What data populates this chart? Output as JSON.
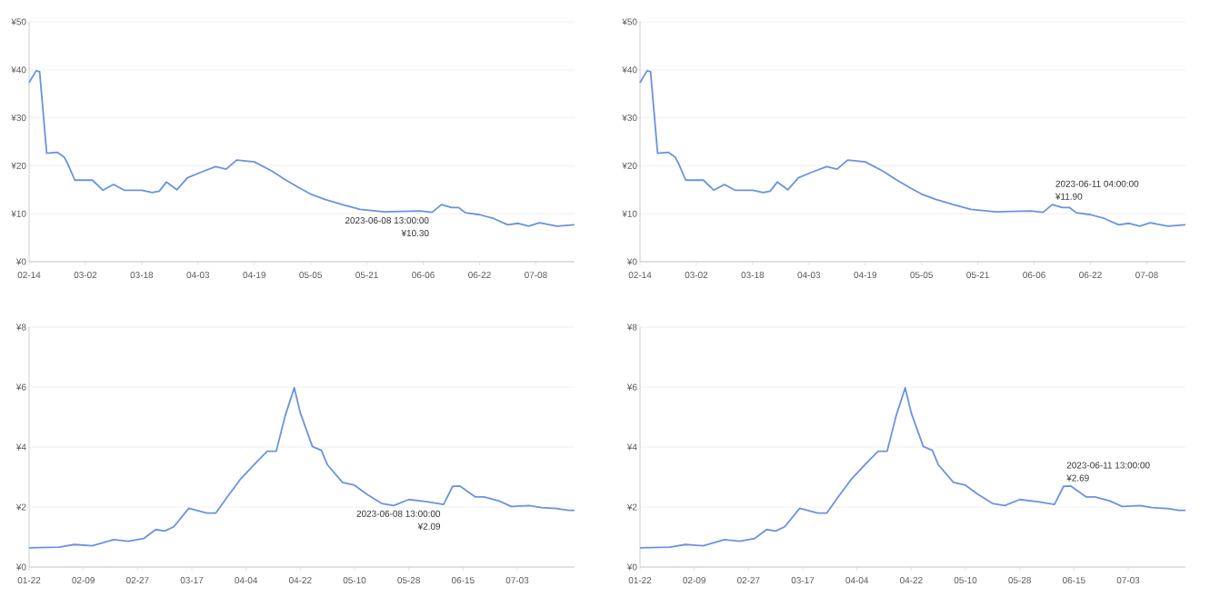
{
  "chart_data": [
    {
      "type": "line",
      "grid": "y",
      "xlim": [
        "2023-02-14",
        "2023-07-19"
      ],
      "xticks": [
        {
          "value": "2023-02-14",
          "label": "02-14"
        },
        {
          "value": "2023-03-02",
          "label": "03-02"
        },
        {
          "value": "2023-03-18",
          "label": "03-18"
        },
        {
          "value": "2023-04-03",
          "label": "04-03"
        },
        {
          "value": "2023-04-19",
          "label": "04-19"
        },
        {
          "value": "2023-05-05",
          "label": "05-05"
        },
        {
          "value": "2023-05-21",
          "label": "05-21"
        },
        {
          "value": "2023-06-06",
          "label": "06-06"
        },
        {
          "value": "2023-06-22",
          "label": "06-22"
        },
        {
          "value": "2023-07-08",
          "label": "07-08"
        }
      ],
      "ylim": [
        0,
        50
      ],
      "yticks": [
        {
          "value": 0,
          "label": "¥0"
        },
        {
          "value": 10,
          "label": "¥10"
        },
        {
          "value": 20,
          "label": "¥20"
        },
        {
          "value": 30,
          "label": "¥30"
        },
        {
          "value": 40,
          "label": "¥40"
        },
        {
          "value": 50,
          "label": "¥50"
        }
      ],
      "x": [
        "2023-02-14",
        "2023-02-16",
        "2023-02-17",
        "2023-02-19",
        "2023-02-22",
        "2023-02-24",
        "2023-02-25",
        "2023-02-27",
        "2023-03-04",
        "2023-03-07",
        "2023-03-10",
        "2023-03-13",
        "2023-03-18",
        "2023-03-21",
        "2023-03-23",
        "2023-03-25",
        "2023-03-28",
        "2023-03-31",
        "2023-04-04",
        "2023-04-08",
        "2023-04-11",
        "2023-04-14",
        "2023-04-19",
        "2023-04-24",
        "2023-04-28",
        "2023-05-02",
        "2023-05-05",
        "2023-05-09",
        "2023-05-14",
        "2023-05-19",
        "2023-05-26",
        "2023-06-05",
        "2023-06-08T13:00",
        "2023-06-11T04:00",
        "2023-06-14",
        "2023-06-16",
        "2023-06-18",
        "2023-06-22",
        "2023-06-26",
        "2023-06-30",
        "2023-07-03",
        "2023-07-06",
        "2023-07-09",
        "2023-07-14",
        "2023-07-19"
      ],
      "series": [
        {
          "color": "#6a93e0",
          "values": [
            37.3,
            39.8,
            39.6,
            22.6,
            22.8,
            21.8,
            20.4,
            17.0,
            17.0,
            14.9,
            16.1,
            14.9,
            14.9,
            14.4,
            14.7,
            16.6,
            15.0,
            17.5,
            18.7,
            19.8,
            19.3,
            21.2,
            20.8,
            18.9,
            17.0,
            15.3,
            14.1,
            13.0,
            11.9,
            10.9,
            10.4,
            10.6,
            10.3,
            11.9,
            11.3,
            11.3,
            10.2,
            9.8,
            9.0,
            7.7,
            8.0,
            7.4,
            8.1,
            7.4,
            7.7
          ]
        }
      ],
      "annotations": [
        {
          "text": "2023-06-08 13:00:00",
          "x": "2023-06-08T13:00",
          "y": 10.3
        },
        {
          "text": "¥10.30",
          "x": "2023-06-08T13:00",
          "y": 10.3
        }
      ]
    },
    {
      "type": "line",
      "grid": "y",
      "xlim": [
        "2023-02-14",
        "2023-07-19"
      ],
      "xticks": [
        {
          "value": "2023-02-14",
          "label": "02-14"
        },
        {
          "value": "2023-03-02",
          "label": "03-02"
        },
        {
          "value": "2023-03-18",
          "label": "03-18"
        },
        {
          "value": "2023-04-03",
          "label": "04-03"
        },
        {
          "value": "2023-04-19",
          "label": "04-19"
        },
        {
          "value": "2023-05-05",
          "label": "05-05"
        },
        {
          "value": "2023-05-21",
          "label": "05-21"
        },
        {
          "value": "2023-06-06",
          "label": "06-06"
        },
        {
          "value": "2023-06-22",
          "label": "06-22"
        },
        {
          "value": "2023-07-08",
          "label": "07-08"
        }
      ],
      "ylim": [
        0,
        50
      ],
      "yticks": [
        {
          "value": 0,
          "label": "¥0"
        },
        {
          "value": 10,
          "label": "¥10"
        },
        {
          "value": 20,
          "label": "¥20"
        },
        {
          "value": 30,
          "label": "¥30"
        },
        {
          "value": 40,
          "label": "¥40"
        },
        {
          "value": 50,
          "label": "¥50"
        }
      ],
      "x": [
        "2023-02-14",
        "2023-02-16",
        "2023-02-17",
        "2023-02-19",
        "2023-02-22",
        "2023-02-24",
        "2023-02-25",
        "2023-02-27",
        "2023-03-04",
        "2023-03-07",
        "2023-03-10",
        "2023-03-13",
        "2023-03-18",
        "2023-03-21",
        "2023-03-23",
        "2023-03-25",
        "2023-03-28",
        "2023-03-31",
        "2023-04-04",
        "2023-04-08",
        "2023-04-11",
        "2023-04-14",
        "2023-04-19",
        "2023-04-24",
        "2023-04-28",
        "2023-05-02",
        "2023-05-05",
        "2023-05-09",
        "2023-05-14",
        "2023-05-19",
        "2023-05-26",
        "2023-06-05",
        "2023-06-08T13:00",
        "2023-06-11T04:00",
        "2023-06-14",
        "2023-06-16",
        "2023-06-18",
        "2023-06-22",
        "2023-06-26",
        "2023-06-30",
        "2023-07-03",
        "2023-07-06",
        "2023-07-09",
        "2023-07-14",
        "2023-07-19"
      ],
      "series": [
        {
          "color": "#6a93e0",
          "values": [
            37.3,
            39.8,
            39.6,
            22.6,
            22.8,
            21.8,
            20.4,
            17.0,
            17.0,
            14.9,
            16.1,
            14.9,
            14.9,
            14.4,
            14.7,
            16.6,
            15.0,
            17.5,
            18.7,
            19.8,
            19.3,
            21.2,
            20.8,
            18.9,
            17.0,
            15.3,
            14.1,
            13.0,
            11.9,
            10.9,
            10.4,
            10.6,
            10.3,
            11.9,
            11.3,
            11.3,
            10.2,
            9.8,
            9.0,
            7.7,
            8.0,
            7.4,
            8.1,
            7.4,
            7.7
          ]
        }
      ],
      "annotations": [
        {
          "text": "2023-06-11 04:00:00",
          "x": "2023-06-11T04:00",
          "y": 11.9
        },
        {
          "text": "¥11.90",
          "x": "2023-06-11T04:00",
          "y": 11.9
        }
      ]
    },
    {
      "type": "line",
      "grid": "y",
      "xlim": [
        "2023-01-22",
        "2023-07-22"
      ],
      "xticks": [
        {
          "value": "2023-01-22",
          "label": "01-22"
        },
        {
          "value": "2023-02-09",
          "label": "02-09"
        },
        {
          "value": "2023-02-27",
          "label": "02-27"
        },
        {
          "value": "2023-03-17",
          "label": "03-17"
        },
        {
          "value": "2023-04-04",
          "label": "04-04"
        },
        {
          "value": "2023-04-22",
          "label": "04-22"
        },
        {
          "value": "2023-05-10",
          "label": "05-10"
        },
        {
          "value": "2023-05-28",
          "label": "05-28"
        },
        {
          "value": "2023-06-15",
          "label": "06-15"
        },
        {
          "value": "2023-07-03",
          "label": "07-03"
        }
      ],
      "ylim": [
        0,
        8
      ],
      "yticks": [
        {
          "value": 0,
          "label": "¥0"
        },
        {
          "value": 2,
          "label": "¥2"
        },
        {
          "value": 4,
          "label": "¥4"
        },
        {
          "value": 6,
          "label": "¥6"
        },
        {
          "value": 8,
          "label": "¥8"
        }
      ],
      "x": [
        "2023-01-22",
        "2023-02-01",
        "2023-02-06",
        "2023-02-12",
        "2023-02-19",
        "2023-02-24",
        "2023-03-01",
        "2023-03-05",
        "2023-03-08",
        "2023-03-11",
        "2023-03-16",
        "2023-03-22",
        "2023-03-25",
        "2023-03-29",
        "2023-04-02",
        "2023-04-07",
        "2023-04-11",
        "2023-04-14",
        "2023-04-17",
        "2023-04-20",
        "2023-04-22",
        "2023-04-26",
        "2023-04-29",
        "2023-05-01",
        "2023-05-06",
        "2023-05-10",
        "2023-05-14",
        "2023-05-19",
        "2023-05-23",
        "2023-05-28",
        "2023-06-03",
        "2023-06-08T13:00",
        "2023-06-11T13:00",
        "2023-06-14",
        "2023-06-19",
        "2023-06-22",
        "2023-06-27",
        "2023-07-01",
        "2023-07-07",
        "2023-07-11",
        "2023-07-16",
        "2023-07-20",
        "2023-07-22"
      ],
      "series": [
        {
          "color": "#6a93e0",
          "values": [
            0.64,
            0.66,
            0.75,
            0.71,
            0.91,
            0.86,
            0.95,
            1.25,
            1.2,
            1.34,
            1.96,
            1.8,
            1.8,
            2.37,
            2.91,
            3.45,
            3.86,
            3.86,
            5.05,
            5.98,
            5.14,
            4.02,
            3.89,
            3.41,
            2.82,
            2.73,
            2.43,
            2.12,
            2.05,
            2.25,
            2.18,
            2.09,
            2.69,
            2.7,
            2.34,
            2.34,
            2.2,
            2.02,
            2.05,
            1.98,
            1.95,
            1.89,
            1.89
          ]
        }
      ],
      "annotations": [
        {
          "text": "2023-06-08 13:00:00",
          "x": "2023-06-08T13:00",
          "y": 2.09
        },
        {
          "text": "¥2.09",
          "x": "2023-06-08T13:00",
          "y": 2.09
        }
      ]
    },
    {
      "type": "line",
      "grid": "y",
      "xlim": [
        "2023-01-22",
        "2023-07-22"
      ],
      "xticks": [
        {
          "value": "2023-01-22",
          "label": "01-22"
        },
        {
          "value": "2023-02-09",
          "label": "02-09"
        },
        {
          "value": "2023-02-27",
          "label": "02-27"
        },
        {
          "value": "2023-03-17",
          "label": "03-17"
        },
        {
          "value": "2023-04-04",
          "label": "04-04"
        },
        {
          "value": "2023-04-22",
          "label": "04-22"
        },
        {
          "value": "2023-05-10",
          "label": "05-10"
        },
        {
          "value": "2023-05-28",
          "label": "05-28"
        },
        {
          "value": "2023-06-15",
          "label": "06-15"
        },
        {
          "value": "2023-07-03",
          "label": "07-03"
        }
      ],
      "ylim": [
        0,
        8
      ],
      "yticks": [
        {
          "value": 0,
          "label": "¥0"
        },
        {
          "value": 2,
          "label": "¥2"
        },
        {
          "value": 4,
          "label": "¥4"
        },
        {
          "value": 6,
          "label": "¥6"
        },
        {
          "value": 8,
          "label": "¥8"
        }
      ],
      "x": [
        "2023-01-22",
        "2023-02-01",
        "2023-02-06",
        "2023-02-12",
        "2023-02-19",
        "2023-02-24",
        "2023-03-01",
        "2023-03-05",
        "2023-03-08",
        "2023-03-11",
        "2023-03-16",
        "2023-03-22",
        "2023-03-25",
        "2023-03-29",
        "2023-04-02",
        "2023-04-07",
        "2023-04-11",
        "2023-04-14",
        "2023-04-17",
        "2023-04-20",
        "2023-04-22",
        "2023-04-26",
        "2023-04-29",
        "2023-05-01",
        "2023-05-06",
        "2023-05-10",
        "2023-05-14",
        "2023-05-19",
        "2023-05-23",
        "2023-05-28",
        "2023-06-03",
        "2023-06-08T13:00",
        "2023-06-11T13:00",
        "2023-06-14",
        "2023-06-19",
        "2023-06-22",
        "2023-06-27",
        "2023-07-01",
        "2023-07-07",
        "2023-07-11",
        "2023-07-16",
        "2023-07-20",
        "2023-07-22"
      ],
      "series": [
        {
          "color": "#6a93e0",
          "values": [
            0.64,
            0.66,
            0.75,
            0.71,
            0.91,
            0.86,
            0.95,
            1.25,
            1.2,
            1.34,
            1.96,
            1.8,
            1.8,
            2.37,
            2.91,
            3.45,
            3.86,
            3.86,
            5.05,
            5.98,
            5.14,
            4.02,
            3.89,
            3.41,
            2.82,
            2.73,
            2.43,
            2.12,
            2.05,
            2.25,
            2.18,
            2.09,
            2.69,
            2.7,
            2.34,
            2.34,
            2.2,
            2.02,
            2.05,
            1.98,
            1.95,
            1.89,
            1.89
          ]
        }
      ],
      "annotations": [
        {
          "text": "2023-06-11 13:00:00",
          "x": "2023-06-11T13:00",
          "y": 2.69
        },
        {
          "text": "¥2.69",
          "x": "2023-06-11T13:00",
          "y": 2.69
        }
      ]
    }
  ]
}
